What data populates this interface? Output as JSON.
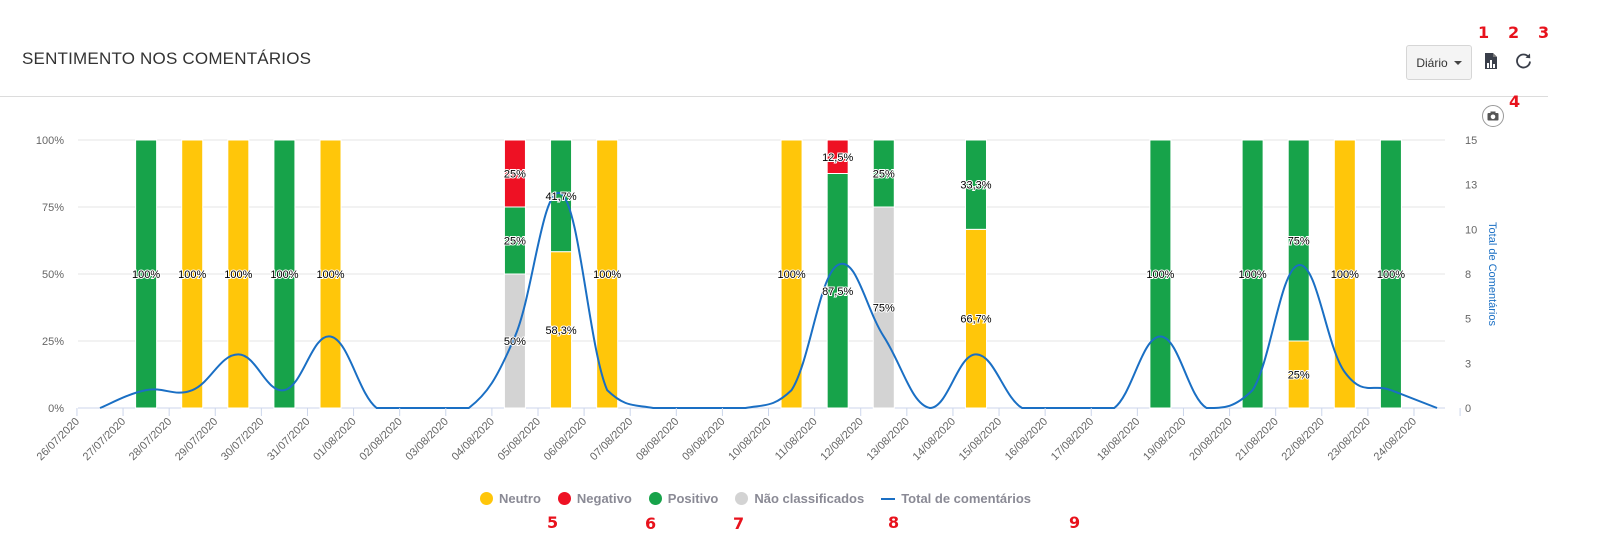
{
  "header": {
    "title": "SENTIMENTO NOS COMENTÁRIOS",
    "period_select": {
      "selected": "Diário"
    },
    "icons": {
      "export": "chart-export-icon",
      "refresh": "refresh-icon",
      "camera": "camera-icon"
    }
  },
  "annotations": [
    "1",
    "2",
    "3",
    "4",
    "5",
    "6",
    "7",
    "8",
    "9"
  ],
  "colors": {
    "neutro": "#ffc60a",
    "negativo": "#ee1124",
    "positivo": "#17a34a",
    "nao_classificados": "#d3d3d3",
    "total": "#1a6fc4"
  },
  "chart_data": {
    "type": "bar",
    "stacked": "percent",
    "title": "",
    "xlabel": "",
    "ylabel": "",
    "y2label": "Total de Comentários",
    "ylim": [
      0,
      100
    ],
    "y2lim": [
      0,
      15
    ],
    "yticks": [
      "0%",
      "25%",
      "50%",
      "75%",
      "100%"
    ],
    "y2ticks": [
      "0",
      "3",
      "5",
      "8",
      "10",
      "13",
      "15"
    ],
    "grid": true,
    "legend_position": "bottom-center",
    "categories": [
      "26/07/2020",
      "27/07/2020",
      "28/07/2020",
      "29/07/2020",
      "30/07/2020",
      "31/07/2020",
      "01/08/2020",
      "02/08/2020",
      "03/08/2020",
      "04/08/2020",
      "05/08/2020",
      "06/08/2020",
      "07/08/2020",
      "08/08/2020",
      "09/08/2020",
      "10/08/2020",
      "11/08/2020",
      "12/08/2020",
      "13/08/2020",
      "14/08/2020",
      "15/08/2020",
      "16/08/2020",
      "17/08/2020",
      "18/08/2020",
      "19/08/2020",
      "20/08/2020",
      "21/08/2020",
      "22/08/2020",
      "23/08/2020",
      "24/08/2020"
    ],
    "series": [
      {
        "name": "Neutro",
        "key": "neutro",
        "type": "bar",
        "values": [
          0,
          0,
          1,
          3,
          0,
          4,
          0,
          0,
          0,
          0,
          7,
          1,
          0,
          0,
          0,
          1,
          0,
          0,
          0,
          2,
          0,
          0,
          0,
          0,
          0,
          0,
          2,
          2,
          0,
          0
        ],
        "labels": [
          "",
          "",
          "100%",
          "100%",
          "",
          "100%",
          "",
          "",
          "",
          "",
          "58,3%",
          "100%",
          "",
          "",
          "",
          "100%",
          "",
          "",
          "",
          "66,7%",
          "",
          "",
          "",
          "",
          "",
          "",
          "25%",
          "100%",
          "",
          ""
        ]
      },
      {
        "name": "Negativo",
        "key": "negativo",
        "type": "bar",
        "values": [
          0,
          0,
          0,
          0,
          0,
          0,
          0,
          0,
          0,
          1,
          0,
          0,
          0,
          0,
          0,
          0,
          1,
          0,
          0,
          0,
          0,
          0,
          0,
          0,
          0,
          0,
          0,
          0,
          0,
          0
        ],
        "labels": [
          "",
          "",
          "",
          "",
          "",
          "",
          "",
          "",
          "",
          "25%",
          "",
          "",
          "",
          "",
          "",
          "",
          "12,5%",
          "",
          "",
          "",
          "",
          "",
          "",
          "",
          "",
          "",
          "",
          "",
          "",
          ""
        ]
      },
      {
        "name": "Positivo",
        "key": "positivo",
        "type": "bar",
        "values": [
          0,
          1,
          0,
          0,
          1,
          0,
          0,
          0,
          0,
          1,
          5,
          0,
          0,
          0,
          0,
          0,
          7,
          1,
          0,
          1,
          0,
          0,
          0,
          4,
          0,
          1,
          6,
          0,
          1,
          0
        ],
        "labels": [
          "",
          "100%",
          "",
          "",
          "100%",
          "",
          "",
          "",
          "",
          "25%",
          "41,7%",
          "",
          "",
          "",
          "",
          "",
          "87,5%",
          "25%",
          "",
          "33,3%",
          "",
          "",
          "",
          "100%",
          "",
          "100%",
          "75%",
          "",
          "100%",
          ""
        ]
      },
      {
        "name": "Não classificados",
        "key": "nao_classificados",
        "type": "bar",
        "values": [
          0,
          0,
          0,
          0,
          0,
          0,
          0,
          0,
          0,
          2,
          0,
          0,
          0,
          0,
          0,
          0,
          0,
          3,
          0,
          0,
          0,
          0,
          0,
          0,
          0,
          0,
          0,
          0,
          0,
          0
        ],
        "labels": [
          "",
          "",
          "",
          "",
          "",
          "",
          "",
          "",
          "",
          "50%",
          "",
          "",
          "",
          "",
          "",
          "",
          "",
          "75%",
          "",
          "",
          "",
          "",
          "",
          "",
          "",
          "",
          "",
          "",
          "",
          ""
        ]
      },
      {
        "name": "Total de comentários",
        "key": "total",
        "type": "line",
        "axis": "right",
        "values": [
          0,
          1,
          1,
          3,
          1,
          4,
          0,
          0,
          0,
          4,
          12,
          1,
          0,
          0,
          0,
          1,
          8,
          4,
          0,
          3,
          0,
          0,
          0,
          4,
          0,
          1,
          8,
          2,
          1,
          0
        ]
      }
    ]
  }
}
